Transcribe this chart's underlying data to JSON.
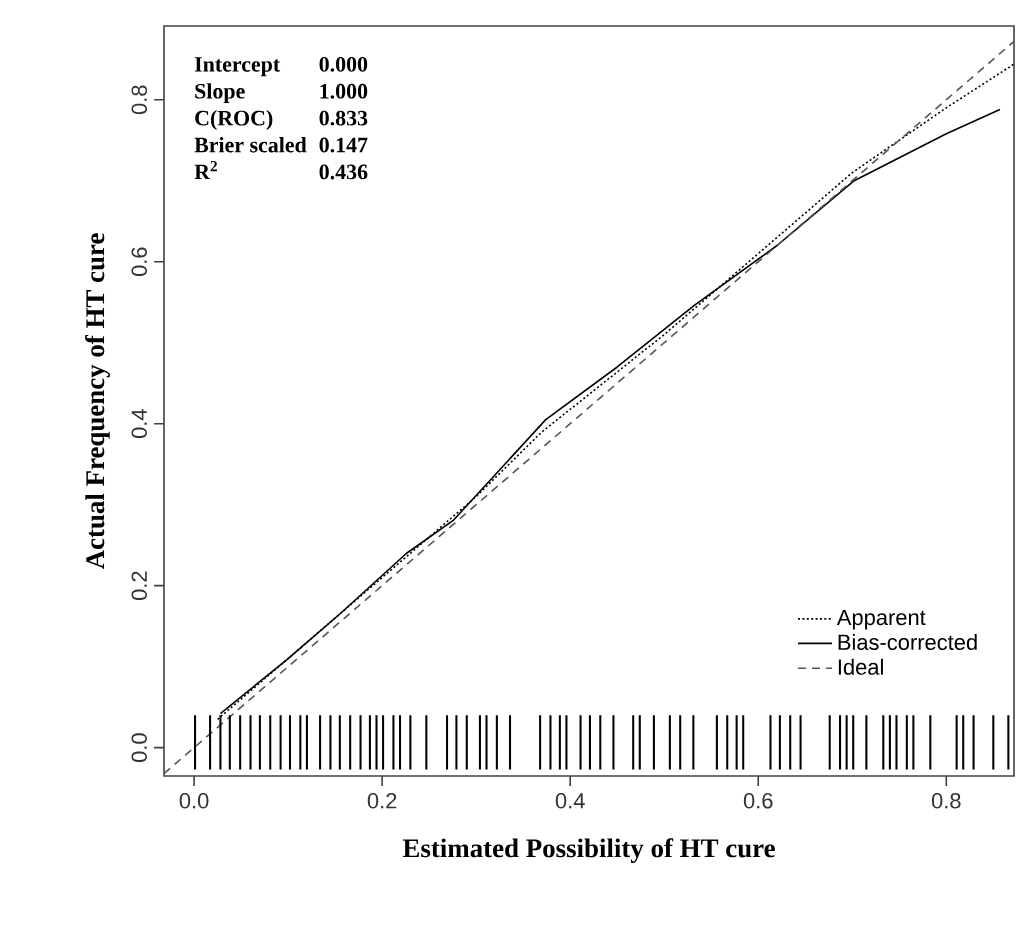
{
  "chart_data": {
    "type": "line",
    "xlabel": "Estimated Possibility of HT cure",
    "ylabel": "Actual Frequency of HT cure",
    "xlim": [
      -0.032,
      0.872
    ],
    "ylim": [
      -0.035,
      0.891
    ],
    "xticks": [
      {
        "value": 0,
        "label": "0.0"
      },
      {
        "value": 0.2,
        "label": "0.2"
      },
      {
        "value": 0.4,
        "label": "0.4"
      },
      {
        "value": 0.6,
        "label": "0.6"
      },
      {
        "value": 0.8,
        "label": "0.8"
      }
    ],
    "yticks": [
      {
        "value": 0,
        "label": "0.0"
      },
      {
        "value": 0.2,
        "label": "0.2"
      },
      {
        "value": 0.4,
        "label": "0.4"
      },
      {
        "value": 0.6,
        "label": "0.6"
      },
      {
        "value": 0.8,
        "label": "0.8"
      }
    ],
    "legend": "bottom right",
    "grid": false,
    "annotations": [
      "Intercept",
      "0.000",
      "Slope",
      "1.000",
      "C(ROC)",
      "0.833",
      "Brier scaled",
      "0.147",
      "R$^{2}$",
      "0.436"
    ],
    "series": [
      {
        "name": "Apparent",
        "color": "#000000",
        "line_style": "dotted",
        "x": [
          0.025,
          0.1,
          0.2,
          0.3,
          0.37,
          0.5,
          0.6,
          0.7,
          0.8,
          0.872
        ],
        "values": [
          0.035,
          0.11,
          0.21,
          0.31,
          0.39,
          0.51,
          0.61,
          0.71,
          0.79,
          0.844
        ]
      },
      {
        "name": "Bias-corrected",
        "color": "#000000",
        "line_style": "solid",
        "x": [
          0.028,
          0.1,
          0.155,
          0.226,
          0.276,
          0.374,
          0.45,
          0.532,
          0.62,
          0.702,
          0.8,
          0.857
        ],
        "values": [
          0.042,
          0.11,
          0.165,
          0.24,
          0.281,
          0.405,
          0.47,
          0.546,
          0.62,
          0.7,
          0.758,
          0.788
        ]
      },
      {
        "name": "Ideal",
        "color": "#555555",
        "line_style": "dashed",
        "x": [
          -0.032,
          0.872
        ],
        "values": [
          -0.032,
          0.872
        ]
      },
      {
        "type": "bar",
        "color": "#000000",
        "x": [
          0.001,
          0.017,
          0.028,
          0.038,
          0.049,
          0.06,
          0.07,
          0.081,
          0.092,
          0.102,
          0.113,
          0.12,
          0.134,
          0.145,
          0.155,
          0.166,
          0.177,
          0.187,
          0.194,
          0.201,
          0.212,
          0.219,
          0.23,
          0.247,
          0.269,
          0.279,
          0.29,
          0.304,
          0.311,
          0.322,
          0.336,
          0.368,
          0.379,
          0.389,
          0.396,
          0.411,
          0.421,
          0.432,
          0.446,
          0.467,
          0.474,
          0.489,
          0.506,
          0.517,
          0.531,
          0.556,
          0.567,
          0.577,
          0.584,
          0.613,
          0.623,
          0.634,
          0.645,
          0.676,
          0.687,
          0.694,
          0.701,
          0.715,
          0.733,
          0.74,
          0.747,
          0.758,
          0.765,
          0.783,
          0.811,
          0.818,
          0.829,
          0.85,
          0.866
        ],
        "values": [
          0.067,
          0.067,
          0.067,
          0.067,
          0.067,
          0.067,
          0.067,
          0.067,
          0.067,
          0.067,
          0.067,
          0.067,
          0.067,
          0.067,
          0.067,
          0.067,
          0.067,
          0.067,
          0.067,
          0.067,
          0.067,
          0.067,
          0.067,
          0.067,
          0.067,
          0.067,
          0.067,
          0.067,
          0.067,
          0.067,
          0.067,
          0.067,
          0.067,
          0.067,
          0.067,
          0.067,
          0.067,
          0.067,
          0.067,
          0.067,
          0.067,
          0.067,
          0.067,
          0.067,
          0.067,
          0.067,
          0.067,
          0.067,
          0.067,
          0.067,
          0.067,
          0.067,
          0.067,
          0.067,
          0.067,
          0.067,
          0.067,
          0.067,
          0.067,
          0.067,
          0.067,
          0.067,
          0.067,
          0.067,
          0.067,
          0.067,
          0.067,
          0.067,
          0.067
        ],
        "base": [
          -0.027,
          -0.027,
          -0.027,
          -0.027,
          -0.027,
          -0.027,
          -0.027,
          -0.027,
          -0.027,
          -0.027,
          -0.027,
          -0.027,
          -0.027,
          -0.027,
          -0.027,
          -0.027,
          -0.027,
          -0.027,
          -0.027,
          -0.027,
          -0.027,
          -0.027,
          -0.027,
          -0.027,
          -0.027,
          -0.027,
          -0.027,
          -0.027,
          -0.027,
          -0.027,
          -0.027,
          -0.027,
          -0.027,
          -0.027,
          -0.027,
          -0.027,
          -0.027,
          -0.027,
          -0.027,
          -0.027,
          -0.027,
          -0.027,
          -0.027,
          -0.027,
          -0.027,
          -0.027,
          -0.027,
          -0.027,
          -0.027,
          -0.027,
          -0.027,
          -0.027,
          -0.027,
          -0.027,
          -0.027,
          -0.027,
          -0.027,
          -0.027,
          -0.027,
          -0.027,
          -0.027,
          -0.027,
          -0.027,
          -0.027,
          -0.027,
          -0.027,
          -0.027,
          -0.027,
          -0.027
        ]
      }
    ]
  }
}
